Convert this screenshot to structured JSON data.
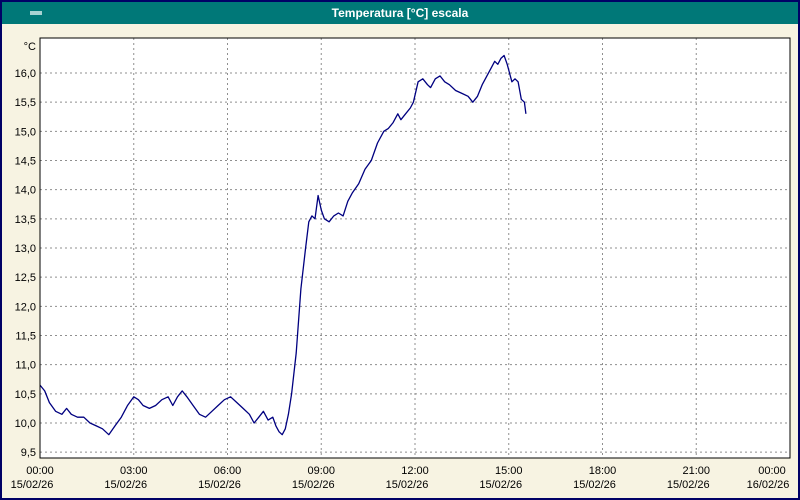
{
  "window": {
    "title": "Temperatura [°C] escala"
  },
  "colors": {
    "titlebar": "#007878",
    "window_background": "#f7f3e2",
    "plot_background": "#ffffff",
    "grid": "#8f8f8f",
    "axis_border": "#000000",
    "series_line": "#000080",
    "window_border": "#000066"
  },
  "chart_data": {
    "type": "line",
    "title": "Temperatura [°C] escala",
    "xlabel": "",
    "ylabel": "°C",
    "ylim": [
      9.4,
      16.6
    ],
    "xlim_hours": [
      0,
      24
    ],
    "grid": "dashed",
    "legend": "none",
    "y_ticks": [
      16.0,
      15.5,
      15.0,
      14.5,
      14.0,
      13.5,
      13.0,
      12.5,
      12.0,
      11.5,
      11.0,
      10.5,
      10.0,
      9.5
    ],
    "y_tick_labels": [
      "16,0",
      "15,5",
      "15,0",
      "14,5",
      "14,0",
      "13,5",
      "13,0",
      "12,5",
      "12,0",
      "11,5",
      "11,0",
      "10,5",
      "10,0",
      "9,5"
    ],
    "x_ticks": [
      {
        "hour": 0,
        "time": "00:00",
        "date": "15/02/26"
      },
      {
        "hour": 3,
        "time": "03:00",
        "date": "15/02/26"
      },
      {
        "hour": 6,
        "time": "06:00",
        "date": "15/02/26"
      },
      {
        "hour": 9,
        "time": "09:00",
        "date": "15/02/26"
      },
      {
        "hour": 12,
        "time": "12:00",
        "date": "15/02/26"
      },
      {
        "hour": 15,
        "time": "15:00",
        "date": "15/02/26"
      },
      {
        "hour": 18,
        "time": "18:00",
        "date": "15/02/26"
      },
      {
        "hour": 21,
        "time": "21:00",
        "date": "15/02/26"
      },
      {
        "hour": 24,
        "time": "00:00",
        "date": "16/02/26"
      }
    ],
    "series": [
      {
        "name": "Temperatura",
        "color": "#000080",
        "points": [
          [
            0.0,
            10.65
          ],
          [
            0.15,
            10.55
          ],
          [
            0.3,
            10.35
          ],
          [
            0.5,
            10.2
          ],
          [
            0.7,
            10.15
          ],
          [
            0.85,
            10.25
          ],
          [
            1.0,
            10.15
          ],
          [
            1.2,
            10.1
          ],
          [
            1.4,
            10.1
          ],
          [
            1.6,
            10.0
          ],
          [
            1.8,
            9.95
          ],
          [
            2.0,
            9.9
          ],
          [
            2.2,
            9.8
          ],
          [
            2.4,
            9.95
          ],
          [
            2.6,
            10.1
          ],
          [
            2.8,
            10.3
          ],
          [
            3.0,
            10.45
          ],
          [
            3.15,
            10.4
          ],
          [
            3.3,
            10.3
          ],
          [
            3.5,
            10.25
          ],
          [
            3.7,
            10.3
          ],
          [
            3.9,
            10.4
          ],
          [
            4.1,
            10.45
          ],
          [
            4.25,
            10.3
          ],
          [
            4.4,
            10.45
          ],
          [
            4.55,
            10.55
          ],
          [
            4.7,
            10.45
          ],
          [
            4.9,
            10.3
          ],
          [
            5.1,
            10.15
          ],
          [
            5.3,
            10.1
          ],
          [
            5.5,
            10.2
          ],
          [
            5.7,
            10.3
          ],
          [
            5.9,
            10.4
          ],
          [
            6.1,
            10.45
          ],
          [
            6.3,
            10.35
          ],
          [
            6.5,
            10.25
          ],
          [
            6.7,
            10.15
          ],
          [
            6.85,
            10.0
          ],
          [
            7.0,
            10.1
          ],
          [
            7.15,
            10.2
          ],
          [
            7.3,
            10.05
          ],
          [
            7.45,
            10.1
          ],
          [
            7.55,
            9.95
          ],
          [
            7.65,
            9.85
          ],
          [
            7.75,
            9.8
          ],
          [
            7.85,
            9.9
          ],
          [
            7.95,
            10.15
          ],
          [
            8.05,
            10.5
          ],
          [
            8.2,
            11.2
          ],
          [
            8.35,
            12.3
          ],
          [
            8.5,
            13.0
          ],
          [
            8.6,
            13.45
          ],
          [
            8.7,
            13.55
          ],
          [
            8.8,
            13.5
          ],
          [
            8.9,
            13.9
          ],
          [
            9.0,
            13.65
          ],
          [
            9.1,
            13.5
          ],
          [
            9.25,
            13.45
          ],
          [
            9.4,
            13.55
          ],
          [
            9.55,
            13.6
          ],
          [
            9.7,
            13.55
          ],
          [
            9.85,
            13.8
          ],
          [
            10.0,
            13.95
          ],
          [
            10.2,
            14.1
          ],
          [
            10.4,
            14.35
          ],
          [
            10.6,
            14.5
          ],
          [
            10.8,
            14.8
          ],
          [
            11.0,
            15.0
          ],
          [
            11.15,
            15.05
          ],
          [
            11.3,
            15.15
          ],
          [
            11.45,
            15.3
          ],
          [
            11.55,
            15.2
          ],
          [
            11.7,
            15.3
          ],
          [
            11.85,
            15.4
          ],
          [
            11.95,
            15.5
          ],
          [
            12.1,
            15.85
          ],
          [
            12.25,
            15.9
          ],
          [
            12.4,
            15.8
          ],
          [
            12.5,
            15.75
          ],
          [
            12.65,
            15.9
          ],
          [
            12.8,
            15.95
          ],
          [
            12.95,
            15.85
          ],
          [
            13.1,
            15.8
          ],
          [
            13.3,
            15.7
          ],
          [
            13.5,
            15.65
          ],
          [
            13.7,
            15.6
          ],
          [
            13.85,
            15.5
          ],
          [
            14.0,
            15.6
          ],
          [
            14.15,
            15.8
          ],
          [
            14.3,
            15.95
          ],
          [
            14.45,
            16.1
          ],
          [
            14.55,
            16.2
          ],
          [
            14.65,
            16.15
          ],
          [
            14.75,
            16.25
          ],
          [
            14.85,
            16.3
          ],
          [
            14.95,
            16.15
          ],
          [
            15.05,
            15.95
          ],
          [
            15.1,
            15.85
          ],
          [
            15.2,
            15.9
          ],
          [
            15.3,
            15.85
          ],
          [
            15.4,
            15.55
          ],
          [
            15.5,
            15.5
          ],
          [
            15.55,
            15.3
          ]
        ]
      }
    ]
  }
}
